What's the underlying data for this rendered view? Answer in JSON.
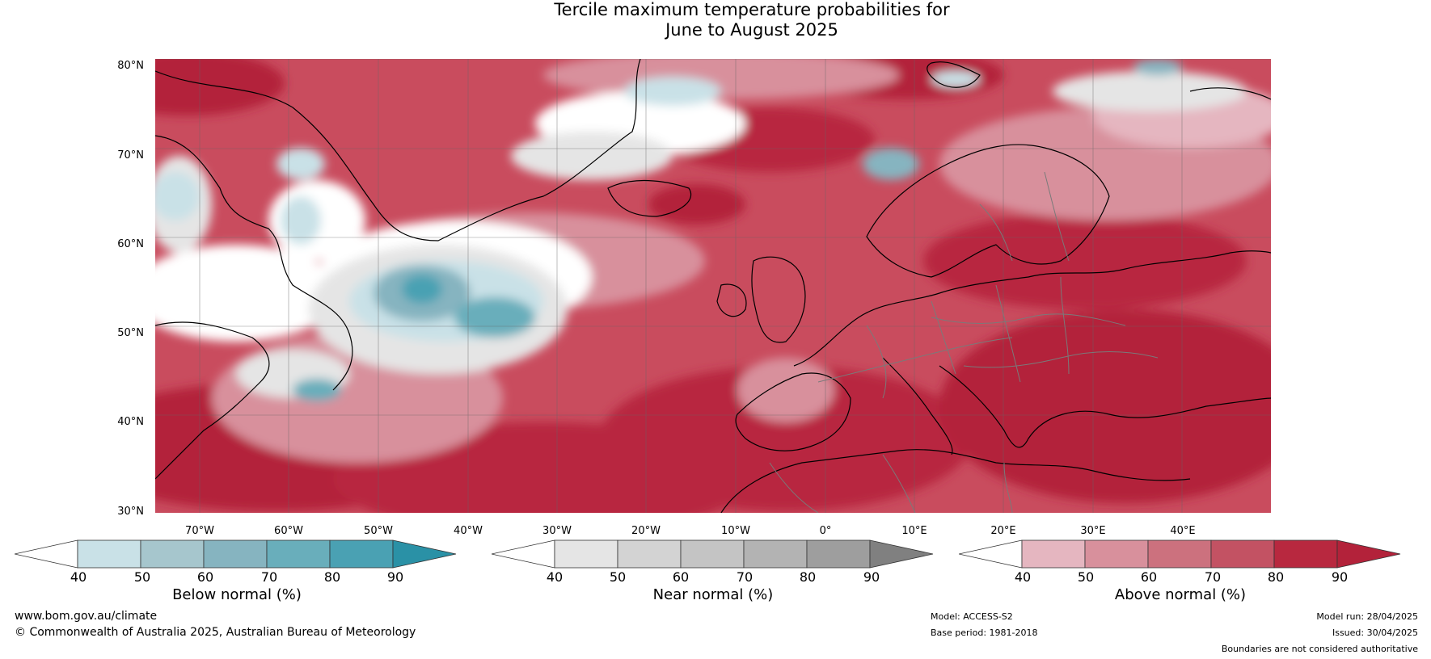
{
  "title": {
    "line1": "Tercile maximum temperature probabilities for",
    "line2": "June to August 2025"
  },
  "map": {
    "region": "North Atlantic and Europe",
    "lat_labels": [
      "80°N",
      "70°N",
      "60°N",
      "50°N",
      "40°N",
      "30°N"
    ],
    "lon_labels": [
      "70°W",
      "60°W",
      "50°W",
      "40°W",
      "30°W",
      "20°W",
      "10°W",
      "0°",
      "10°E",
      "20°E",
      "30°E",
      "40°E"
    ]
  },
  "colorbars": [
    {
      "label": "Below normal (%)",
      "ticks": [
        "40",
        "50",
        "60",
        "70",
        "80",
        "90"
      ],
      "colors": [
        "#ffffff",
        "#c9e1e7",
        "#a6c6cd",
        "#86b4c0",
        "#69aebb",
        "#4aa1b3",
        "#2a91a6"
      ]
    },
    {
      "label": "Near normal (%)",
      "ticks": [
        "40",
        "50",
        "60",
        "70",
        "80",
        "90"
      ],
      "colors": [
        "#ffffff",
        "#e5e5e5",
        "#d3d3d3",
        "#c4c4c4",
        "#b3b3b3",
        "#9e9e9e",
        "#808080"
      ]
    },
    {
      "label": "Above normal (%)",
      "ticks": [
        "40",
        "50",
        "60",
        "70",
        "80",
        "90"
      ],
      "colors": [
        "#ffffff",
        "#e5b6c0",
        "#d8909c",
        "#cc717e",
        "#c35263",
        "#b8283f",
        "#b3223a"
      ]
    }
  ],
  "footer": {
    "website": "www.bom.gov.au/climate",
    "copyright": "© Commonwealth of Australia 2025, Australian Bureau of Meteorology",
    "model": "Model: ACCESS-S2",
    "base_period": "Base period: 1981-2018",
    "model_run": "Model run: 28/04/2025",
    "issued": "Issued: 30/04/2025",
    "disclaimer": "Boundaries are not considered authoritative"
  }
}
